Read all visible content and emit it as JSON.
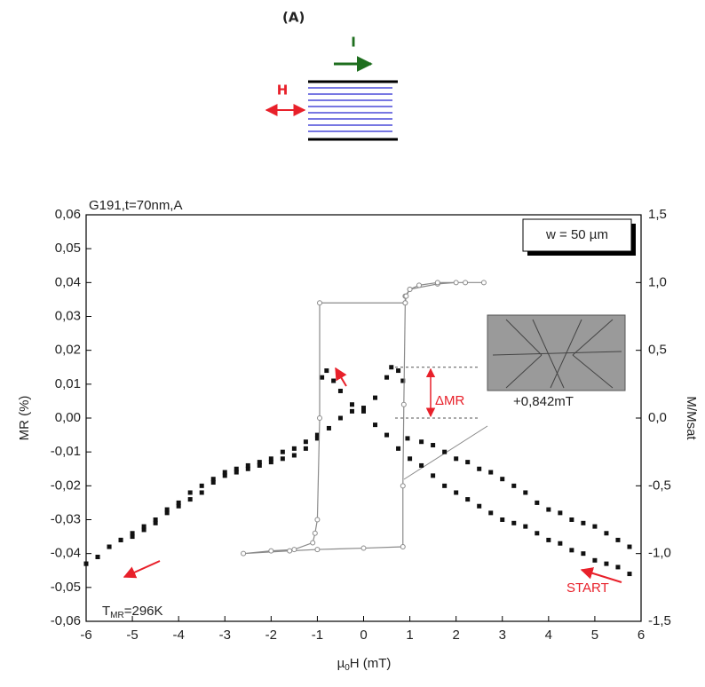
{
  "panel_label": "(A)",
  "diagram_labels": {
    "field": "H",
    "current": "I"
  },
  "chart_data": {
    "type": "scatter",
    "x_label": {
      "text": "µ",
      "sub": "0",
      "rest": "H (mT)"
    },
    "y_label": "MR (%)",
    "y2_label": "M/Msat",
    "xlim": [
      -6,
      6
    ],
    "xticks": [
      -6,
      -5,
      -4,
      -3,
      -2,
      -1,
      0,
      1,
      2,
      3,
      4,
      5,
      6
    ],
    "ylim": [
      -0.06,
      0.06
    ],
    "yticks": [
      {
        "value": 0.06,
        "label": "0,06"
      },
      {
        "value": 0.05,
        "label": "0,05"
      },
      {
        "value": 0.04,
        "label": "0,04"
      },
      {
        "value": 0.03,
        "label": "0,03"
      },
      {
        "value": 0.02,
        "label": "0,02"
      },
      {
        "value": 0.01,
        "label": "0,01"
      },
      {
        "value": 0,
        "label": "0,00"
      },
      {
        "value": -0.01,
        "label": "-0,01"
      },
      {
        "value": -0.02,
        "label": "-0,02"
      },
      {
        "value": -0.03,
        "label": "-0,03"
      },
      {
        "value": -0.04,
        "label": "-0,04"
      },
      {
        "value": -0.05,
        "label": "-0,05"
      },
      {
        "value": -0.06,
        "label": "-0,06"
      }
    ],
    "y2lim": [
      -1.5,
      1.5
    ],
    "y2ticks": [
      {
        "value": 1.5,
        "label": "1,5"
      },
      {
        "value": 1,
        "label": "1,0"
      },
      {
        "value": 0.5,
        "label": "0,5"
      },
      {
        "value": 0,
        "label": "0,0"
      },
      {
        "value": -0.5,
        "label": "-0,5"
      },
      {
        "value": -1,
        "label": "-1,0"
      },
      {
        "value": -1.5,
        "label": "-1,5"
      }
    ],
    "series": [
      {
        "color": "#111111",
        "marker": "square",
        "x": [
          5.75,
          5.5,
          5.25,
          5.0,
          4.75,
          4.5,
          4.25,
          4.0,
          3.75,
          3.5,
          3.25,
          3.0,
          2.75,
          2.5,
          2.25,
          2.0,
          1.75,
          1.5,
          1.25,
          1.0,
          0.75,
          0.5,
          0.25,
          0,
          -0.25,
          -0.5,
          -0.65,
          -0.8,
          -0.9,
          -1.0,
          -1.25,
          -1.5,
          -1.75,
          -2,
          -2.25,
          -2.5,
          -2.75,
          -3,
          -3.25,
          -3.5,
          -3.75,
          -4,
          -4.25,
          -4.5,
          -4.75,
          -5,
          -5.25,
          -5.5,
          -5.75,
          -6
        ],
        "values": [
          -0.046,
          -0.044,
          -0.043,
          -0.042,
          -0.04,
          -0.039,
          -0.037,
          -0.036,
          -0.034,
          -0.032,
          -0.031,
          -0.03,
          -0.028,
          -0.026,
          -0.024,
          -0.022,
          -0.02,
          -0.017,
          -0.014,
          -0.012,
          -0.009,
          -0.005,
          -0.002,
          0.002,
          0.004,
          0.008,
          0.011,
          0.014,
          0.012,
          -0.006,
          -0.009,
          -0.011,
          -0.012,
          -0.013,
          -0.014,
          -0.015,
          -0.016,
          -0.017,
          -0.019,
          -0.022,
          -0.024,
          -0.026,
          -0.028,
          -0.031,
          -0.033,
          -0.035,
          -0.036,
          -0.038,
          -0.041,
          -0.043
        ]
      },
      {
        "color": "#111111",
        "marker": "square",
        "x": [
          -6,
          -5.75,
          -5.5,
          -5.25,
          -5,
          -4.75,
          -4.5,
          -4.25,
          -4,
          -3.75,
          -3.5,
          -3.25,
          -3,
          -2.75,
          -2.5,
          -2.25,
          -2,
          -1.75,
          -1.5,
          -1.25,
          -1,
          -0.75,
          -0.5,
          -0.25,
          0,
          0.25,
          0.5,
          0.6,
          0.75,
          0.85,
          0.95,
          1.25,
          1.5,
          1.75,
          2,
          2.25,
          2.5,
          2.75,
          3,
          3.25,
          3.5,
          3.75,
          4,
          4.25,
          4.5,
          4.75,
          5,
          5.25,
          5.5,
          5.75
        ],
        "values": [
          -0.043,
          -0.041,
          -0.038,
          -0.036,
          -0.034,
          -0.032,
          -0.03,
          -0.027,
          -0.025,
          -0.022,
          -0.02,
          -0.018,
          -0.016,
          -0.015,
          -0.014,
          -0.013,
          -0.012,
          -0.01,
          -0.009,
          -0.007,
          -0.005,
          -0.003,
          0,
          0.002,
          0.003,
          0.006,
          0.012,
          0.015,
          0.014,
          0.011,
          -0.006,
          -0.007,
          -0.008,
          -0.01,
          -0.012,
          -0.013,
          -0.015,
          -0.016,
          -0.018,
          -0.02,
          -0.022,
          -0.025,
          -0.027,
          -0.028,
          -0.03,
          -0.031,
          -0.032,
          -0.034,
          -0.036,
          -0.038
        ]
      },
      {
        "color": "#8a8a8a",
        "marker": "open-circle",
        "axis": "y2",
        "x": [
          2.6,
          2.0,
          1.6,
          1.0,
          0.9,
          0.9,
          -0.95,
          -0.95,
          -1.0,
          -1.05,
          -1.1,
          -1.5,
          -2.0,
          -2.6,
          -1.6,
          -1.0,
          0.0,
          0.85,
          0.85,
          0.87,
          0.9,
          0.92,
          1.0,
          1.2,
          1.6,
          2.2
        ],
        "values": [
          1.0,
          1.0,
          0.99,
          0.95,
          0.9,
          0.85,
          0.85,
          0.0,
          -0.75,
          -0.85,
          -0.92,
          -0.97,
          -0.98,
          -1.0,
          -0.98,
          -0.97,
          -0.96,
          -0.95,
          -0.5,
          0.1,
          0.85,
          0.9,
          0.95,
          0.98,
          1.0,
          1.0
        ]
      }
    ],
    "annotations": {
      "sample": "G191,t=70nm,A",
      "width": "w = 50 µm",
      "delta": "ΔMR",
      "field_value": "+0,842mT",
      "start": "START",
      "temperature": {
        "text": "T",
        "sub": "MR",
        "rest": "=296K"
      }
    }
  }
}
